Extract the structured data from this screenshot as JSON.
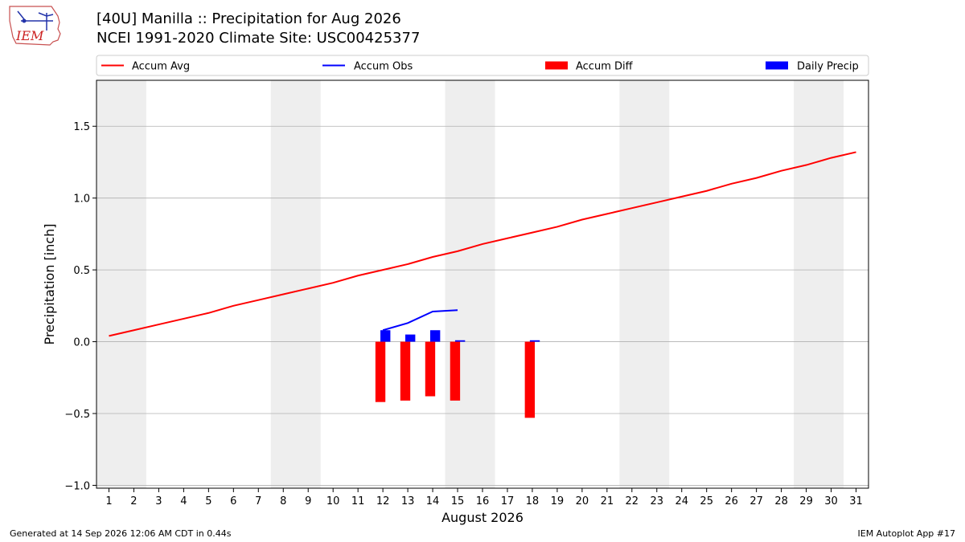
{
  "title_line1": "[40U] Manilla :: Precipitation for Aug 2026",
  "title_line2": "NCEI 1991-2020 Climate Site: USC00425377",
  "logo_text": "IEM",
  "footer_left": "Generated at 14 Sep 2026 12:06 AM CDT in 0.44s",
  "footer_right": "IEM Autoplot App #17",
  "chart_data": {
    "type": "bar",
    "xlabel": "August 2026",
    "ylabel": "Precipitation [inch]",
    "xlim": [
      0.5,
      31.5
    ],
    "ylim": [
      -1.02,
      1.82
    ],
    "yticks": [
      -1.0,
      -0.5,
      0.0,
      0.5,
      1.0,
      1.5
    ],
    "ytick_labels": [
      "−1.0",
      "−0.5",
      "0.0",
      "0.5",
      "1.0",
      "1.5"
    ],
    "xticks": [
      1,
      2,
      3,
      4,
      5,
      6,
      7,
      8,
      9,
      10,
      11,
      12,
      13,
      14,
      15,
      16,
      17,
      18,
      19,
      20,
      21,
      22,
      23,
      24,
      25,
      26,
      27,
      28,
      29,
      30,
      31
    ],
    "grid": "y",
    "legend_position": "top",
    "weekend_shading": [
      [
        0.5,
        2.5
      ],
      [
        7.5,
        9.5
      ],
      [
        14.5,
        16.5
      ],
      [
        21.5,
        23.5
      ],
      [
        28.5,
        30.5
      ]
    ],
    "colors": {
      "accum_avg": "#ff0000",
      "accum_obs": "#0000ff",
      "accum_diff": "#ff0000",
      "daily_precip": "#0000ff",
      "weekend": "#eeeeee"
    },
    "legend": [
      "Accum Avg",
      "Accum Obs",
      "Accum Diff",
      "Daily Precip"
    ],
    "accum_avg": {
      "name": "Accum Avg",
      "x": [
        1,
        2,
        3,
        4,
        5,
        6,
        7,
        8,
        9,
        10,
        11,
        12,
        13,
        14,
        15,
        16,
        17,
        18,
        19,
        20,
        21,
        22,
        23,
        24,
        25,
        26,
        27,
        28,
        29,
        30,
        31
      ],
      "values": [
        0.04,
        0.08,
        0.12,
        0.16,
        0.2,
        0.25,
        0.29,
        0.33,
        0.37,
        0.41,
        0.46,
        0.5,
        0.54,
        0.59,
        0.63,
        0.68,
        0.72,
        0.76,
        0.8,
        0.85,
        0.89,
        0.93,
        0.97,
        1.01,
        1.05,
        1.1,
        1.14,
        1.19,
        1.23,
        1.28,
        1.32
      ]
    },
    "accum_obs": {
      "name": "Accum Obs",
      "x": [
        12,
        13,
        14,
        15
      ],
      "values": [
        0.08,
        0.13,
        0.21,
        0.22
      ]
    },
    "accum_diff": {
      "name": "Accum Diff",
      "x": [
        12,
        13,
        14,
        15,
        18
      ],
      "values": [
        -0.42,
        -0.41,
        -0.38,
        -0.41,
        -0.53
      ]
    },
    "daily_precip": {
      "name": "Daily Precip",
      "x": [
        12,
        13,
        14,
        15,
        18
      ],
      "values": [
        0.08,
        0.05,
        0.08,
        0.01,
        0.01
      ]
    }
  }
}
